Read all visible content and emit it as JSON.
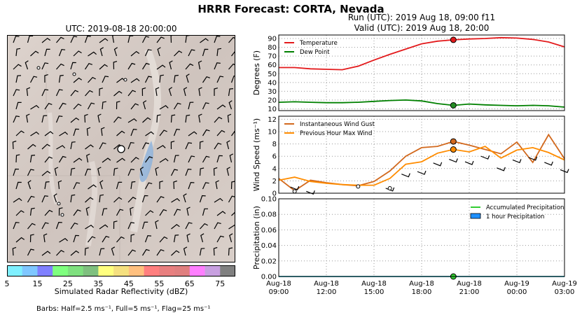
{
  "header": {
    "title": "HRRR Forecast: CORTA, Nevada",
    "map_title": "UTC: 2019-08-18 20:00:00",
    "run_line": "Run (UTC): 2019 Aug 18, 09:00 f11",
    "valid_line": "Valid (UTC): 2019 Aug 18, 20:00"
  },
  "colorbar": {
    "label": "Simulated Radar Reflectivity (dBZ)",
    "ticks": [
      "5",
      "15",
      "25",
      "35",
      "45",
      "55",
      "65",
      "75"
    ],
    "colors": [
      "#7ff0ff",
      "#7fc7ff",
      "#8080ff",
      "#7fff7f",
      "#7fe07f",
      "#7fc07f",
      "#ffff7f",
      "#f5e07f",
      "#ffc07f",
      "#ff7f7f",
      "#e87f7f",
      "#e07f7f",
      "#ff7fff",
      "#c8a0e0",
      "#808080"
    ]
  },
  "footer": {
    "barbs_note": "Barbs: Half=2.5 ms⁻¹, Full=5 ms⁻¹, Flag=25 ms⁻¹"
  },
  "chart_data": [
    {
      "type": "line",
      "ylabel": "Degrees (F)",
      "ylim": [
        8,
        94
      ],
      "yticks": [
        10,
        20,
        30,
        40,
        50,
        60,
        70,
        80,
        90
      ],
      "grid": true,
      "legend_placement": "top-left",
      "x_hours_since_label": "",
      "x": [
        "09:00",
        "10:00",
        "11:00",
        "12:00",
        "13:00",
        "14:00",
        "15:00",
        "16:00",
        "17:00",
        "18:00",
        "19:00",
        "20:00",
        "21:00",
        "22:00",
        "23:00",
        "00:00",
        "01:00",
        "02:00",
        "03:00"
      ],
      "series": [
        {
          "name": "Temperature",
          "color": "#e31a1c",
          "values": [
            57,
            57,
            55.5,
            55,
            54.5,
            58.5,
            65.5,
            72,
            78,
            84,
            87,
            88.5,
            89.5,
            90,
            91,
            90.5,
            89,
            86,
            80.5
          ]
        },
        {
          "name": "Dew Point",
          "color": "#008000",
          "values": [
            17.5,
            18,
            17.5,
            17,
            17,
            17.5,
            18.5,
            19.5,
            20,
            19,
            16,
            14,
            15.5,
            14.5,
            14,
            13.5,
            14,
            13.5,
            12
          ]
        }
      ],
      "marker_time": "20:00",
      "markers": [
        88.5,
        14
      ]
    },
    {
      "type": "line",
      "ylabel": "Wind Speed (ms⁻¹)",
      "ylim": [
        0,
        12.5
      ],
      "yticks": [
        0,
        2,
        4,
        6,
        8,
        10,
        12
      ],
      "grid": true,
      "legend_placement": "top-left",
      "x": [
        "09:00",
        "10:00",
        "11:00",
        "12:00",
        "13:00",
        "14:00",
        "15:00",
        "16:00",
        "17:00",
        "18:00",
        "19:00",
        "20:00",
        "21:00",
        "22:00",
        "23:00",
        "00:00",
        "01:00",
        "02:00",
        "03:00"
      ],
      "series": [
        {
          "name": "Instantaneous Wind Gust",
          "color": "#d2691e",
          "values": [
            2.4,
            0.4,
            2.1,
            1.7,
            1.4,
            1.2,
            1.9,
            3.6,
            6.0,
            7.4,
            7.6,
            8.4,
            7.8,
            7.1,
            6.4,
            8.3,
            5.0,
            9.5,
            5.6
          ]
        },
        {
          "name": "Previous Hour Max Wind",
          "color": "#ff8c00",
          "values": [
            2.1,
            2.6,
            1.9,
            1.6,
            1.4,
            1.3,
            1.3,
            2.4,
            4.7,
            5.1,
            6.5,
            7.1,
            6.7,
            7.6,
            5.7,
            7.0,
            7.4,
            6.6,
            5.4
          ]
        }
      ],
      "marker_time": "20:00",
      "markers": [
        8.4,
        7.1
      ]
    },
    {
      "type": "line",
      "ylabel": "Precipitation (in)",
      "ylim": [
        0,
        0.1
      ],
      "yticks": [
        "0.00",
        "0.02",
        "0.04",
        "0.06",
        "0.08",
        "0.10"
      ],
      "grid": true,
      "legend_placement": "top-right",
      "series": [
        {
          "name": "Accumulated Precipitation",
          "color": "#32cd32",
          "values": [
            0,
            0,
            0,
            0,
            0,
            0,
            0,
            0,
            0,
            0,
            0,
            0,
            0,
            0,
            0,
            0,
            0,
            0,
            0
          ]
        },
        {
          "name": "1 hour Precipitation",
          "color": "#1e90ff",
          "values": [
            0,
            0,
            0,
            0,
            0,
            0,
            0,
            0,
            0,
            0,
            0,
            0,
            0,
            0,
            0,
            0,
            0,
            0,
            0
          ]
        }
      ],
      "marker_time": "20:00",
      "markers": [
        0
      ],
      "xtick_labels": [
        [
          "Aug-18",
          "09:00"
        ],
        [
          "Aug-18",
          "12:00"
        ],
        [
          "Aug-18",
          "15:00"
        ],
        [
          "Aug-18",
          "18:00"
        ],
        [
          "Aug-18",
          "21:00"
        ],
        [
          "Aug-19",
          "00:00"
        ],
        [
          "Aug-19",
          "03:00"
        ]
      ]
    }
  ]
}
